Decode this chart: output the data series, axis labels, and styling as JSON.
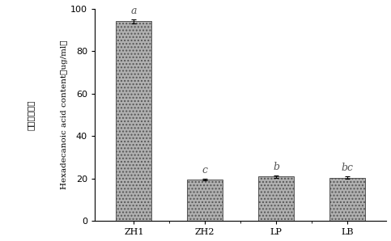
{
  "categories": [
    "ZH1",
    "ZH2",
    "LP",
    "LB"
  ],
  "values": [
    94.0,
    19.5,
    21.0,
    20.5
  ],
  "errors": [
    1.0,
    0.4,
    0.5,
    0.5
  ],
  "letters": [
    "a",
    "c",
    "b",
    "bc"
  ],
  "bar_color": "#b0b0b0",
  "bar_edgecolor": "#555555",
  "ylabel_chinese": "十六烷酸含量",
  "ylabel_english": "Hexadecanoic acid content（ug/ml）",
  "ylim": [
    0,
    100
  ],
  "yticks": [
    0,
    20,
    40,
    60,
    80,
    100
  ],
  "bar_width": 0.5,
  "hatch": "....",
  "letter_fontsize": 9,
  "axis_fontsize": 7.5,
  "tick_fontsize": 8,
  "background_color": "#ffffff"
}
